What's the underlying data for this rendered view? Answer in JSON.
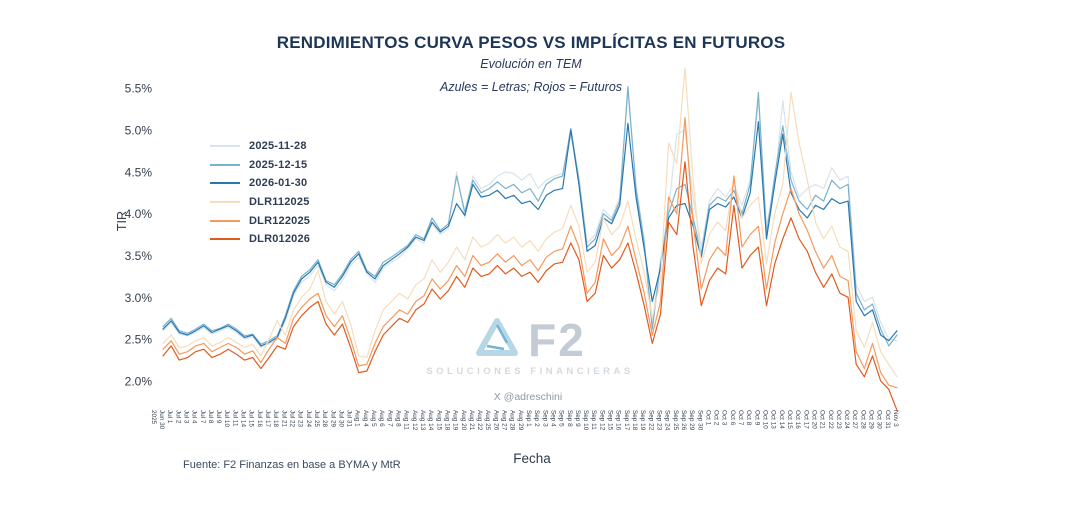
{
  "header": {
    "title": "RENDIMIENTOS CURVA PESOS VS IMPLÍCITAS EN FUTUROS",
    "subtitle": "Evolución en TEM",
    "note": "Azules = Letras; Rojos = Futuros"
  },
  "watermark": {
    "brand": "F2",
    "tagline": "SOLUCIONES FINANCIERAS",
    "handle": "X @adreschini"
  },
  "footer": {
    "source": "Fuente: F2 Finanzas en base a BYMA y MtR"
  },
  "axes": {
    "y_label": "TIR",
    "x_label": "Fecha",
    "x_year_label": "2025"
  },
  "chart_data": {
    "type": "line",
    "title": "RENDIMIENTOS CURVA PESOS VS IMPLÍCITAS EN FUTUROS",
    "subtitle": "Evolución en TEM",
    "annotation": "Azules = Letras; Rojos = Futuros",
    "xlabel": "Fecha",
    "ylabel": "TIR",
    "units": "percent TEM",
    "ylim": [
      1.6,
      5.8
    ],
    "grid": false,
    "legend_position": "upper-left-inside",
    "y_tick_labels": [
      "2.0%",
      "2.5%",
      "3.0%",
      "3.5%",
      "4.0%",
      "4.5%",
      "5.0%",
      "5.5%"
    ],
    "categories": [
      "Jun 30",
      "Jul 1",
      "Jul 2",
      "Jul 3",
      "Jul 4",
      "Jul 7",
      "Jul 8",
      "Jul 9",
      "Jul 10",
      "Jul 11",
      "Jul 14",
      "Jul 15",
      "Jul 16",
      "Jul 17",
      "Jul 18",
      "Jul 21",
      "Jul 22",
      "Jul 23",
      "Jul 24",
      "Jul 25",
      "Jul 28",
      "Jul 29",
      "Jul 30",
      "Jul 31",
      "Aug 1",
      "Aug 4",
      "Aug 5",
      "Aug 6",
      "Aug 7",
      "Aug 8",
      "Aug 11",
      "Aug 12",
      "Aug 13",
      "Aug 14",
      "Aug 15",
      "Aug 18",
      "Aug 19",
      "Aug 20",
      "Aug 21",
      "Aug 22",
      "Aug 25",
      "Aug 26",
      "Aug 27",
      "Aug 28",
      "Aug 29",
      "Sep 1",
      "Sep 2",
      "Sep 3",
      "Sep 4",
      "Sep 5",
      "Sep 8",
      "Sep 9",
      "Sep 10",
      "Sep 11",
      "Sep 12",
      "Sep 15",
      "Sep 16",
      "Sep 17",
      "Sep 18",
      "Sep 19",
      "Sep 22",
      "Sep 23",
      "Sep 24",
      "Sep 25",
      "Sep 26",
      "Sep 29",
      "Sep 30",
      "Oct 1",
      "Oct 2",
      "Oct 3",
      "Oct 6",
      "Oct 7",
      "Oct 8",
      "Oct 9",
      "Oct 10",
      "Oct 13",
      "Oct 14",
      "Oct 15",
      "Oct 16",
      "Oct 17",
      "Oct 20",
      "Oct 21",
      "Oct 22",
      "Oct 23",
      "Oct 24",
      "Oct 27",
      "Oct 28",
      "Oct 29",
      "Oct 30",
      "Oct 31",
      "Nov 3"
    ],
    "series": [
      {
        "name": "2025-11-28",
        "color": "#d8e3eb",
        "values": [
          2.6,
          2.7,
          2.56,
          2.54,
          2.58,
          2.64,
          2.56,
          2.6,
          2.64,
          2.58,
          2.5,
          2.53,
          2.4,
          2.44,
          2.5,
          2.72,
          3.02,
          3.18,
          3.26,
          3.38,
          3.15,
          3.08,
          3.2,
          3.38,
          3.48,
          3.28,
          3.18,
          3.35,
          3.42,
          3.48,
          3.58,
          3.7,
          3.65,
          3.88,
          3.75,
          3.82,
          4.5,
          3.95,
          4.45,
          4.3,
          4.35,
          4.45,
          4.5,
          4.48,
          4.4,
          4.48,
          4.3,
          4.4,
          4.45,
          4.48,
          4.95,
          4.45,
          3.65,
          3.75,
          4.05,
          3.95,
          4.2,
          5.45,
          4.35,
          3.7,
          2.7,
          3.45,
          4.05,
          4.95,
          5.0,
          4.2,
          3.6,
          4.15,
          4.3,
          4.2,
          4.35,
          4.1,
          4.4,
          5.35,
          3.85,
          4.35,
          5.35,
          4.5,
          4.2,
          4.3,
          4.35,
          4.3,
          4.55,
          4.4,
          4.45,
          3.15,
          2.95,
          3.0,
          2.7,
          2.5,
          2.48
        ]
      },
      {
        "name": "2025-12-15",
        "color": "#7bb1cd",
        "values": [
          2.65,
          2.75,
          2.6,
          2.57,
          2.62,
          2.68,
          2.6,
          2.63,
          2.68,
          2.62,
          2.54,
          2.56,
          2.44,
          2.48,
          2.54,
          2.78,
          3.08,
          3.25,
          3.33,
          3.45,
          3.2,
          3.15,
          3.28,
          3.45,
          3.55,
          3.32,
          3.25,
          3.42,
          3.48,
          3.55,
          3.62,
          3.75,
          3.7,
          3.95,
          3.8,
          3.88,
          4.45,
          4.02,
          4.4,
          4.25,
          4.3,
          4.38,
          4.3,
          4.35,
          4.25,
          4.3,
          4.15,
          4.35,
          4.42,
          4.45,
          5.02,
          4.4,
          3.6,
          3.7,
          4.0,
          3.92,
          4.15,
          5.52,
          4.3,
          3.65,
          2.62,
          3.4,
          4.0,
          4.3,
          4.35,
          3.95,
          3.52,
          4.1,
          4.2,
          4.15,
          4.28,
          4.0,
          4.35,
          5.45,
          3.75,
          4.45,
          5.05,
          4.4,
          4.15,
          4.05,
          4.22,
          4.15,
          4.4,
          4.3,
          4.35,
          3.05,
          2.85,
          2.92,
          2.62,
          2.42,
          2.55
        ]
      },
      {
        "name": "2026-01-30",
        "color": "#2878b0",
        "values": [
          2.62,
          2.72,
          2.58,
          2.55,
          2.6,
          2.66,
          2.58,
          2.62,
          2.66,
          2.6,
          2.52,
          2.55,
          2.42,
          2.46,
          2.52,
          2.75,
          3.05,
          3.22,
          3.3,
          3.42,
          3.18,
          3.12,
          3.25,
          3.42,
          3.52,
          3.3,
          3.22,
          3.38,
          3.45,
          3.52,
          3.6,
          3.72,
          3.68,
          3.9,
          3.78,
          3.85,
          4.12,
          3.98,
          4.35,
          4.2,
          4.22,
          4.28,
          4.18,
          4.22,
          4.12,
          4.15,
          4.05,
          4.22,
          4.28,
          4.3,
          5.0,
          4.35,
          3.55,
          3.62,
          3.95,
          3.88,
          4.1,
          5.08,
          4.2,
          3.58,
          2.95,
          3.35,
          3.95,
          4.1,
          4.12,
          3.85,
          3.48,
          4.05,
          4.12,
          4.08,
          4.2,
          3.95,
          4.25,
          5.1,
          3.7,
          4.35,
          4.95,
          4.25,
          4.05,
          3.95,
          4.1,
          4.05,
          4.18,
          4.12,
          4.15,
          2.95,
          2.78,
          2.85,
          2.55,
          2.48,
          2.6
        ]
      },
      {
        "name": "DLR112025",
        "color": "#f6ddbc",
        "values": [
          2.45,
          2.55,
          2.4,
          2.42,
          2.48,
          2.52,
          2.42,
          2.46,
          2.52,
          2.46,
          2.4,
          2.44,
          2.3,
          2.5,
          2.72,
          2.55,
          2.85,
          3.0,
          3.1,
          3.32,
          2.95,
          2.8,
          2.95,
          2.68,
          2.3,
          2.28,
          2.6,
          2.85,
          2.95,
          3.05,
          2.98,
          3.15,
          3.22,
          3.45,
          3.3,
          3.42,
          3.6,
          3.45,
          3.72,
          3.6,
          3.65,
          3.75,
          3.65,
          3.72,
          3.6,
          3.68,
          3.55,
          3.7,
          3.78,
          3.82,
          4.1,
          3.85,
          3.3,
          3.42,
          3.95,
          3.75,
          3.85,
          4.15,
          3.7,
          3.3,
          2.75,
          3.2,
          4.85,
          4.6,
          5.74,
          4.4,
          3.4,
          3.75,
          3.9,
          3.8,
          4.4,
          3.95,
          4.1,
          4.2,
          3.4,
          4.0,
          4.35,
          5.45,
          4.85,
          4.4,
          3.9,
          3.7,
          3.85,
          3.6,
          3.55,
          2.6,
          2.4,
          2.7,
          2.35,
          2.2,
          2.05
        ]
      },
      {
        "name": "DLR122025",
        "color": "#f5995c",
        "values": [
          2.38,
          2.48,
          2.32,
          2.35,
          2.42,
          2.45,
          2.35,
          2.4,
          2.45,
          2.4,
          2.32,
          2.36,
          2.22,
          2.38,
          2.52,
          2.45,
          2.75,
          2.88,
          2.98,
          3.05,
          2.78,
          2.65,
          2.78,
          2.5,
          2.18,
          2.2,
          2.45,
          2.65,
          2.75,
          2.85,
          2.8,
          2.95,
          3.02,
          3.22,
          3.1,
          3.2,
          3.38,
          3.25,
          3.5,
          3.38,
          3.42,
          3.52,
          3.42,
          3.5,
          3.38,
          3.45,
          3.32,
          3.48,
          3.55,
          3.58,
          3.85,
          3.6,
          3.05,
          3.18,
          3.7,
          3.5,
          3.6,
          3.85,
          3.45,
          3.05,
          2.55,
          2.95,
          4.2,
          4.0,
          5.15,
          3.9,
          3.1,
          3.45,
          3.6,
          3.5,
          4.45,
          3.6,
          3.75,
          3.85,
          3.1,
          3.65,
          4.0,
          4.3,
          4.0,
          3.8,
          3.55,
          3.35,
          3.5,
          3.25,
          3.2,
          2.35,
          2.15,
          2.45,
          2.1,
          1.95,
          1.92
        ]
      },
      {
        "name": "DLR012026",
        "color": "#e05a1e",
        "values": [
          2.3,
          2.42,
          2.25,
          2.28,
          2.35,
          2.38,
          2.28,
          2.32,
          2.38,
          2.32,
          2.25,
          2.28,
          2.15,
          2.28,
          2.42,
          2.38,
          2.65,
          2.78,
          2.88,
          2.95,
          2.68,
          2.55,
          2.68,
          2.4,
          2.1,
          2.12,
          2.35,
          2.55,
          2.65,
          2.75,
          2.7,
          2.85,
          2.92,
          3.1,
          2.98,
          3.08,
          3.25,
          3.12,
          3.35,
          3.25,
          3.28,
          3.38,
          3.28,
          3.35,
          3.25,
          3.3,
          3.18,
          3.32,
          3.4,
          3.42,
          3.65,
          3.45,
          2.95,
          3.05,
          3.5,
          3.35,
          3.45,
          3.65,
          3.3,
          2.9,
          2.45,
          2.8,
          3.9,
          3.75,
          4.62,
          3.6,
          2.9,
          3.2,
          3.35,
          3.28,
          4.1,
          3.35,
          3.5,
          3.6,
          2.9,
          3.4,
          3.7,
          3.95,
          3.7,
          3.55,
          3.3,
          3.12,
          3.28,
          3.05,
          3.0,
          2.2,
          2.05,
          2.3,
          2.0,
          1.9,
          1.65
        ]
      }
    ]
  }
}
